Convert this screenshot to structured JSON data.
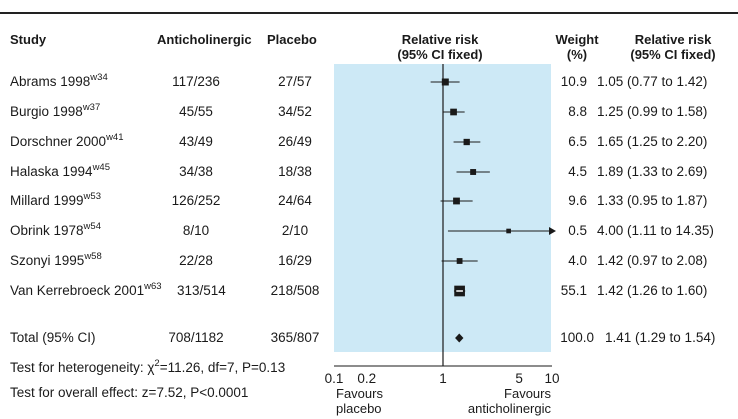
{
  "headers": {
    "study": "Study",
    "anticholinergic": "Anticholinergic",
    "placebo": "Placebo",
    "rr_plot_line1": "Relative risk",
    "rr_plot_line2": "(95% CI fixed)",
    "weight_line1": "Weight",
    "weight_line2": "(%)",
    "rr_text_line1": "Relative risk",
    "rr_text_line2": "(95% CI fixed)"
  },
  "rows": [
    {
      "study": "Abrams 1998",
      "ref": "w34",
      "anticholinergic": "117/236",
      "placebo": "27/57",
      "weight": "10.9",
      "rr_text": "1.05 (0.77 to 1.42)"
    },
    {
      "study": "Burgio 1998",
      "ref": "w37",
      "anticholinergic": "45/55",
      "placebo": "34/52",
      "weight": "8.8",
      "rr_text": "1.25 (0.99 to 1.58)"
    },
    {
      "study": "Dorschner 2000",
      "ref": "w41",
      "anticholinergic": "43/49",
      "placebo": "26/49",
      "weight": "6.5",
      "rr_text": "1.65 (1.25 to 2.20)"
    },
    {
      "study": "Halaska 1994",
      "ref": "w45",
      "anticholinergic": "34/38",
      "placebo": "18/38",
      "weight": "4.5",
      "rr_text": "1.89 (1.33 to 2.69)"
    },
    {
      "study": "Millard 1999",
      "ref": "w53",
      "anticholinergic": "126/252",
      "placebo": "24/64",
      "weight": "9.6",
      "rr_text": "1.33 (0.95 to 1.87)"
    },
    {
      "study": "Obrink 1978",
      "ref": "w54",
      "anticholinergic": "8/10",
      "placebo": "2/10",
      "weight": "0.5",
      "rr_text": "4.00 (1.11 to 14.35)"
    },
    {
      "study": "Szonyi 1995",
      "ref": "w58",
      "anticholinergic": "22/28",
      "placebo": "16/29",
      "weight": "4.0",
      "rr_text": "1.42 (0.97 to 2.08)"
    },
    {
      "study": "Van Kerrebroeck 2001",
      "ref": "w63",
      "anticholinergic": "313/514",
      "placebo": "218/508",
      "weight": "55.1",
      "rr_text": "1.42 (1.26 to 1.60)"
    }
  ],
  "total": {
    "label": "Total (95% CI)",
    "anticholinergic": "708/1182",
    "placebo": "365/807",
    "weight": "100.0",
    "rr_text": "1.41 (1.29 to 1.54)"
  },
  "footer": {
    "heterogeneity_prefix": "Test for heterogeneity: ",
    "chi": "χ",
    "chi_sup": "2",
    "heterogeneity_rest": "=11.26, df=7, P=0.13",
    "overall": "Test for overall effect: z=7.52, P<0.0001",
    "favours_left_1": "Favours",
    "favours_left_2": "placebo",
    "favours_right_1": "Favours",
    "favours_right_2": "anticholinergic"
  },
  "colors": {
    "plot_bg": "#cde9f6",
    "ink": "#1a1a1a"
  },
  "chart_data": {
    "type": "forest",
    "scale": "log",
    "xlim": [
      0.1,
      10
    ],
    "x_ticks": [
      {
        "value": 0.1,
        "label": "0.1"
      },
      {
        "value": 0.2,
        "label": "0.2"
      },
      {
        "value": 1,
        "label": "1"
      },
      {
        "value": 5,
        "label": "5"
      },
      {
        "value": 10,
        "label": "10"
      }
    ],
    "reference_line": 1,
    "studies": [
      {
        "rr": 1.05,
        "lo": 0.77,
        "hi": 1.42,
        "weight": 10.9
      },
      {
        "rr": 1.25,
        "lo": 0.99,
        "hi": 1.58,
        "weight": 8.8
      },
      {
        "rr": 1.65,
        "lo": 1.25,
        "hi": 2.2,
        "weight": 6.5
      },
      {
        "rr": 1.89,
        "lo": 1.33,
        "hi": 2.69,
        "weight": 4.5
      },
      {
        "rr": 1.33,
        "lo": 0.95,
        "hi": 1.87,
        "weight": 9.6
      },
      {
        "rr": 4.0,
        "lo": 1.11,
        "hi": 14.35,
        "weight": 0.5
      },
      {
        "rr": 1.42,
        "lo": 0.97,
        "hi": 2.08,
        "weight": 4.0
      },
      {
        "rr": 1.42,
        "lo": 1.26,
        "hi": 1.6,
        "weight": 55.1
      }
    ],
    "pooled": {
      "rr": 1.41,
      "lo": 1.29,
      "hi": 1.54
    }
  }
}
